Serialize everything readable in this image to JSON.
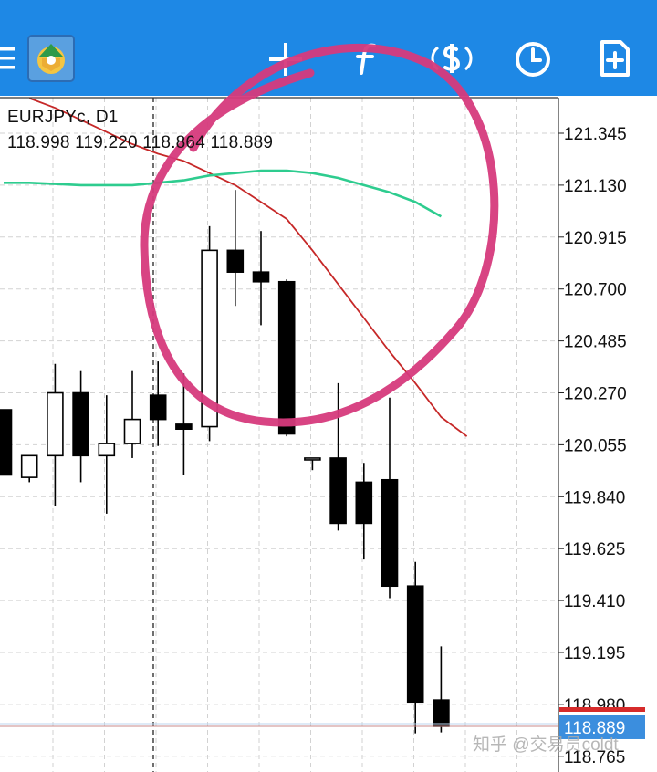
{
  "toolbar": {
    "icons": [
      "menu-icon",
      "metatrader-logo-icon",
      "crosshair-icon",
      "indicators-f-icon",
      "trade-dollar-icon",
      "clock-icon",
      "new-order-icon"
    ],
    "background_color": "#1e88e5"
  },
  "chart_header": {
    "symbol_label": "EURJPYc, D1",
    "ohlc_text": "118.998 119.220 118.864 118.889"
  },
  "watermark": "知乎 @交易员coldt",
  "chart_data": {
    "type": "candlestick",
    "symbol": "EURJPYc",
    "timeframe": "D1",
    "y_axis": {
      "ticks": [
        "121.345",
        "121.130",
        "120.915",
        "120.700",
        "120.485",
        "120.270",
        "120.055",
        "119.840",
        "119.625",
        "119.410",
        "119.195",
        "118.980",
        "118.765"
      ],
      "range": [
        118.74,
        121.54
      ]
    },
    "current_price_label": "118.889",
    "current_price": 118.889,
    "current_price_color": "#3b8ede",
    "bid_line_color": "#d62b2b",
    "grid": true,
    "candles": [
      {
        "o": 120.2,
        "h": 120.2,
        "l": 119.93,
        "c": 119.93
      },
      {
        "o": 119.92,
        "h": 120.0,
        "l": 119.9,
        "c": 120.01
      },
      {
        "o": 120.01,
        "h": 120.39,
        "l": 119.8,
        "c": 120.27
      },
      {
        "o": 120.27,
        "h": 120.36,
        "l": 119.9,
        "c": 120.01
      },
      {
        "o": 120.01,
        "h": 120.26,
        "l": 119.77,
        "c": 120.06
      },
      {
        "o": 120.06,
        "h": 120.36,
        "l": 120.0,
        "c": 120.16
      },
      {
        "o": 120.26,
        "h": 120.4,
        "l": 120.05,
        "c": 120.16
      },
      {
        "o": 120.14,
        "h": 120.35,
        "l": 119.93,
        "c": 120.12
      },
      {
        "o": 120.13,
        "h": 120.96,
        "l": 120.07,
        "c": 120.86
      },
      {
        "o": 120.86,
        "h": 121.11,
        "l": 120.63,
        "c": 120.77
      },
      {
        "o": 120.77,
        "h": 120.94,
        "l": 120.55,
        "c": 120.73
      },
      {
        "o": 120.73,
        "h": 120.74,
        "l": 120.09,
        "c": 120.1
      },
      {
        "o": 120.0,
        "h": 120.0,
        "l": 119.95,
        "c": 120.0
      },
      {
        "o": 120.0,
        "h": 120.31,
        "l": 119.7,
        "c": 119.73
      },
      {
        "o": 119.9,
        "h": 119.98,
        "l": 119.58,
        "c": 119.73
      },
      {
        "o": 119.91,
        "h": 120.25,
        "l": 119.42,
        "c": 119.47
      },
      {
        "o": 119.47,
        "h": 119.57,
        "l": 118.86,
        "c": 118.99
      },
      {
        "o": 118.998,
        "h": 119.22,
        "l": 118.864,
        "c": 118.889
      }
    ],
    "ma_series": [
      {
        "color": "#c62828",
        "points": [
          [
            1,
            121.49
          ],
          [
            2,
            121.45
          ],
          [
            3,
            121.4
          ],
          [
            4,
            121.35
          ],
          [
            5,
            121.3
          ],
          [
            6,
            121.26
          ],
          [
            7,
            121.23
          ],
          [
            8,
            121.18
          ],
          [
            9,
            121.13
          ],
          [
            10,
            121.06
          ],
          [
            11,
            120.99
          ],
          [
            12,
            120.86
          ],
          [
            13,
            120.72
          ],
          [
            14,
            120.58
          ],
          [
            15,
            120.44
          ],
          [
            16,
            120.31
          ],
          [
            17,
            120.17
          ],
          [
            18,
            120.09
          ]
        ]
      },
      {
        "color": "#2ecc8f",
        "points": [
          [
            0,
            121.14
          ],
          [
            1,
            121.14
          ],
          [
            2,
            121.135
          ],
          [
            3,
            121.13
          ],
          [
            4,
            121.13
          ],
          [
            5,
            121.13
          ],
          [
            6,
            121.14
          ],
          [
            7,
            121.15
          ],
          [
            8,
            121.17
          ],
          [
            9,
            121.18
          ],
          [
            10,
            121.19
          ],
          [
            11,
            121.19
          ],
          [
            12,
            121.18
          ],
          [
            13,
            121.16
          ],
          [
            14,
            121.13
          ],
          [
            15,
            121.1
          ],
          [
            16,
            121.06
          ],
          [
            17,
            121.0
          ]
        ]
      }
    ],
    "period_separator_index": 6,
    "annotation": {
      "type": "hand-drawn circle",
      "color": "#d63a7c"
    }
  }
}
